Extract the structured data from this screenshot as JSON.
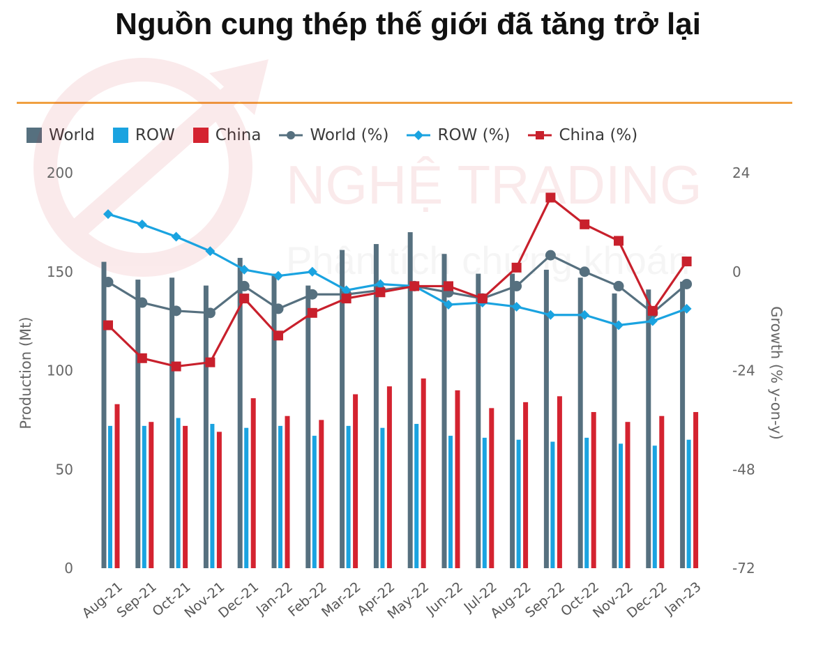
{
  "title": "Nguồn cung thép thế giới đã tăng trở lại",
  "watermark": {
    "line1": "NGHỆ TRADING",
    "line2": "Phân tích chứng khoán"
  },
  "colors": {
    "world_bar": "#56707f",
    "row_bar": "#1aa3e0",
    "china_bar": "#d42330",
    "world_line": "#56707f",
    "row_line": "#1aa3e0",
    "china_line": "#c8202c",
    "accent_rule": "#f0a040"
  },
  "chart_data": {
    "type": "bar",
    "categories": [
      "Aug-21",
      "Sep-21",
      "Oct-21",
      "Nov-21",
      "Dec-21",
      "Jan-22",
      "Feb-22",
      "Mar-22",
      "Apr-22",
      "May-22",
      "Jun-22",
      "Jul-22",
      "Aug-22",
      "Sep-22",
      "Oct-22",
      "Nov-22",
      "Dec-22",
      "Jan-23"
    ],
    "ylabel": "Production (Mt)",
    "y2label": "Growth (% y-on-y)",
    "ylim": [
      0,
      200
    ],
    "yticks": [
      0,
      50,
      100,
      150,
      200
    ],
    "y2lim": [
      -72,
      24
    ],
    "y2ticks": [
      -72,
      -48,
      -24,
      0,
      24
    ],
    "legend_position": "top-left",
    "grid": false,
    "series": [
      {
        "name": "World",
        "type": "bar",
        "axis": "left",
        "values": [
          155,
          146,
          147,
          143,
          157,
          149,
          143,
          161,
          164,
          170,
          159,
          149,
          149,
          151,
          147,
          139,
          141,
          145
        ]
      },
      {
        "name": "ROW",
        "type": "bar",
        "axis": "left",
        "values": [
          72,
          72,
          76,
          73,
          71,
          72,
          67,
          72,
          71,
          73,
          67,
          66,
          65,
          64,
          66,
          63,
          62,
          65
        ]
      },
      {
        "name": "China",
        "type": "bar",
        "axis": "left",
        "values": [
          83,
          74,
          72,
          69,
          86,
          77,
          75,
          88,
          92,
          96,
          90,
          81,
          84,
          87,
          79,
          74,
          77,
          79
        ]
      },
      {
        "name": "World (%)",
        "type": "line",
        "axis": "right",
        "values": [
          -2.5,
          -7.5,
          -9.5,
          -10,
          -3.5,
          -9,
          -5.5,
          -5.5,
          -4.5,
          -3.5,
          -5,
          -6.5,
          -3.5,
          4,
          0,
          -3.5,
          -10,
          -3
        ]
      },
      {
        "name": "ROW (%)",
        "type": "line",
        "axis": "right",
        "values": [
          14,
          11.5,
          8.5,
          5,
          0.5,
          -1,
          0,
          -4.5,
          -3,
          -3.5,
          -8,
          -7.5,
          -8.5,
          -10.5,
          -10.5,
          -13,
          -12,
          -9
        ]
      },
      {
        "name": "China (%)",
        "type": "line",
        "axis": "right",
        "values": [
          -13,
          -21,
          -23,
          -22,
          -6.5,
          -15.5,
          -10,
          -6.5,
          -5,
          -3.5,
          -3.5,
          -6.5,
          1,
          18,
          11.5,
          7.5,
          -9.5,
          2.5
        ]
      }
    ]
  }
}
